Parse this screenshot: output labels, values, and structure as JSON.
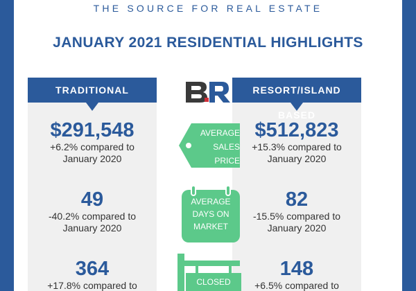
{
  "header": {
    "tagline": "THE SOURCE FOR REAL ESTATE",
    "title": "JANUARY 2021 RESIDENTIAL HIGHLIGHTS"
  },
  "logo": {
    "text": "BR",
    "icon": "br-logo"
  },
  "columns": {
    "traditional": {
      "heading": "TRADITIONAL",
      "sales_price": "$291,548",
      "sales_price_change": "+6.2% compared to",
      "sales_price_period": "January 2020",
      "days_on_market": "49",
      "days_change": "-40.2% compared to",
      "days_period": "January 2020",
      "closed": "364",
      "closed_change": "+17.8% compared to"
    },
    "resort": {
      "heading": "RESORT/ISLAND BASED",
      "sales_price": "$512,823",
      "sales_price_change": "+15.3% compared to",
      "sales_price_period": "January 2020",
      "days_on_market": "82",
      "days_change": "-15.5% compared to",
      "days_period": "January 2020",
      "closed": "148",
      "closed_change": "+6.5% compared to"
    }
  },
  "metrics": {
    "sales_price": [
      "AVERAGE",
      "SALES",
      "PRICE"
    ],
    "days_on_market": [
      "AVERAGE",
      "DAYS ON",
      "MARKET"
    ],
    "closed": [
      "CLOSED"
    ]
  },
  "colors": {
    "brand_blue": "#2b5a9b",
    "metric_green": "#5cc98a",
    "panel_gray": "#f0f0f0"
  }
}
